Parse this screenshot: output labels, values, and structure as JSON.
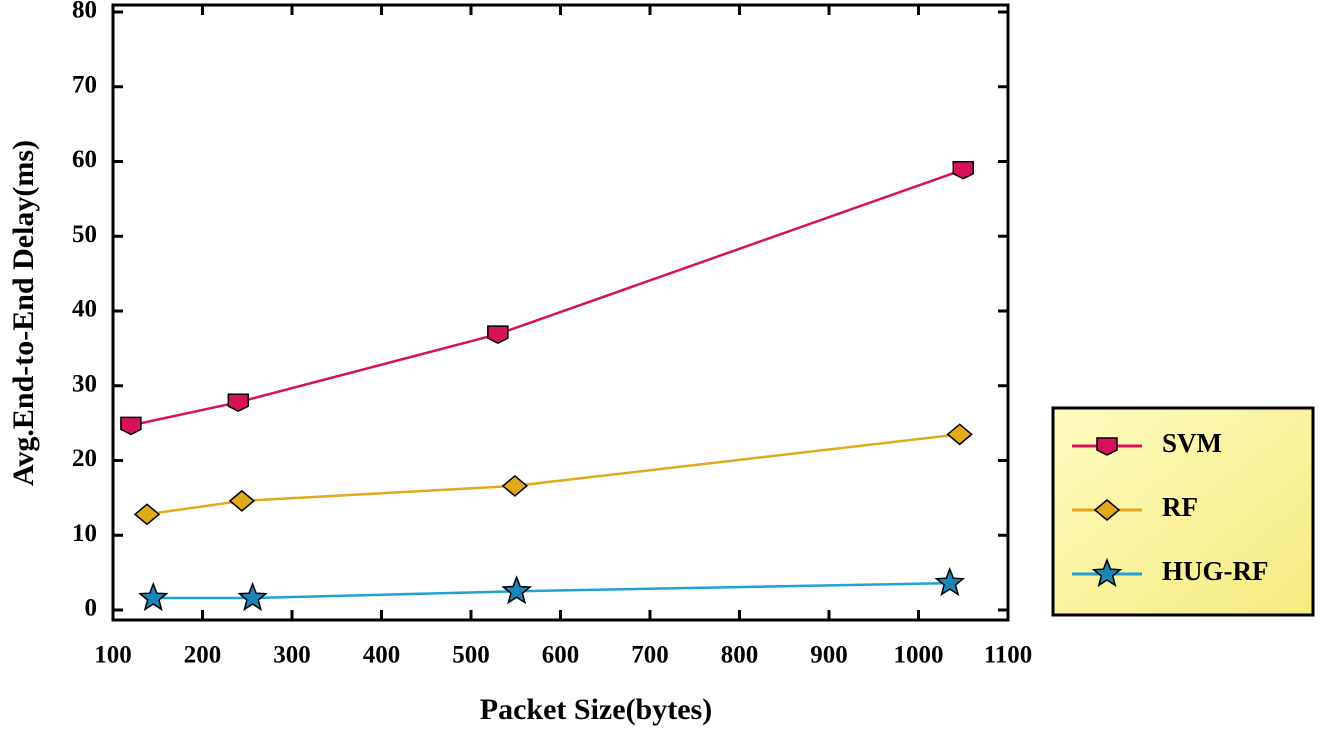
{
  "chart_data": {
    "type": "line",
    "xlabel": "Packet Size(bytes)",
    "ylabel": "Avg.End-to-End Delay(ms)",
    "xlim": [
      100,
      1100
    ],
    "xticks": [
      100,
      200,
      300,
      400,
      500,
      600,
      700,
      800,
      900,
      1000,
      1100
    ],
    "ylim": [
      0,
      80
    ],
    "yticks": [
      0,
      10,
      20,
      30,
      40,
      50,
      60,
      70,
      80
    ],
    "legend": "right",
    "series": [
      {
        "name": "SVM",
        "color": "#d6125a",
        "marker": "square",
        "x": [
          120,
          240,
          530,
          1050
        ],
        "values": [
          24.7,
          27.8,
          36.9,
          58.9
        ]
      },
      {
        "name": "RF",
        "color": "#e0aa1a",
        "marker": "diamond",
        "x": [
          138,
          244,
          549,
          1046
        ],
        "values": [
          12.8,
          14.6,
          16.6,
          23.5
        ]
      },
      {
        "name": "HUG-RF",
        "color": "#1fa0d8",
        "marker": "star",
        "x": [
          145,
          256,
          551,
          1035
        ],
        "values": [
          1.6,
          1.6,
          2.5,
          3.6
        ]
      }
    ]
  }
}
